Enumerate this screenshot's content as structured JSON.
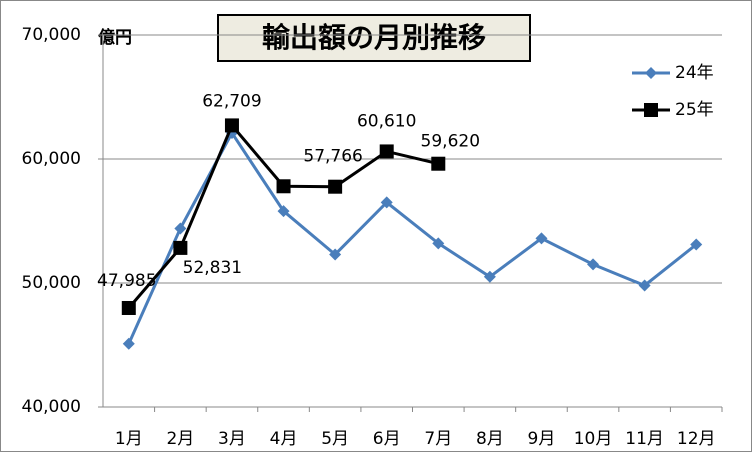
{
  "chart_data": {
    "type": "line",
    "title": "輸出額の月別推移",
    "ylabel": "億円",
    "categories": [
      "1月",
      "2月",
      "3月",
      "4月",
      "5月",
      "6月",
      "7月",
      "8月",
      "9月",
      "10月",
      "11月",
      "12月"
    ],
    "series": [
      {
        "name": "24年",
        "color": "#4a7ebb",
        "marker": "diamond",
        "values": [
          45100,
          54400,
          62100,
          55800,
          52300,
          56500,
          53200,
          50500,
          53600,
          51500,
          49800,
          53100
        ]
      },
      {
        "name": "25年",
        "color": "#000000",
        "marker": "square",
        "values": [
          47985,
          52831,
          62709,
          57800,
          57766,
          60610,
          59620,
          null,
          null,
          null,
          null,
          null
        ],
        "value_labels": [
          "47,985",
          "52,831",
          "62,709",
          null,
          "57,766",
          "60,610",
          "59,620",
          null,
          null,
          null,
          null,
          null
        ]
      }
    ],
    "ylim": [
      40000,
      70000
    ],
    "yticks": [
      {
        "value": 40000,
        "label": "40,000"
      },
      {
        "value": 50000,
        "label": "50,000"
      },
      {
        "value": 60000,
        "label": "60,000"
      },
      {
        "value": 70000,
        "label": "70,000"
      }
    ],
    "grid": true,
    "legend": "top-right"
  }
}
